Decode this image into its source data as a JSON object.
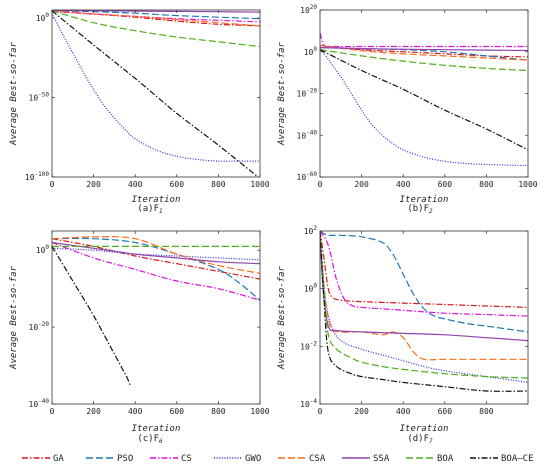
{
  "legend": [
    "GA",
    "PSO",
    "CS",
    "GWO",
    "CSA",
    "SSA",
    "BOA",
    "BOA—CE"
  ],
  "series_styles": [
    {
      "name": "GA",
      "color": "#d7191c",
      "dash": "6,2,1.5,2"
    },
    {
      "name": "PSO",
      "color": "#1f77b4",
      "dash": "7,3"
    },
    {
      "name": "CS",
      "color": "#e00ee0",
      "dash": "6,2,1.5,2"
    },
    {
      "name": "GWO",
      "color": "#2a2ad4",
      "dash": "1,1.6"
    },
    {
      "name": "CSA",
      "color": "#ff6a1a",
      "dash": "7,3"
    },
    {
      "name": "SSA",
      "color": "#8e44ad",
      "dash": ""
    },
    {
      "name": "BOA",
      "color": "#4caf1a",
      "dash": "7,3"
    },
    {
      "name": "BOA—CE",
      "color": "#111111",
      "dash": "6,2,1.5,2"
    }
  ],
  "chart_data": [
    {
      "type": "line",
      "caption_main": "(a)F",
      "caption_sub": "1",
      "xlabel": "Iteration",
      "ylabel": "Average Best-so-far",
      "y_scale": "log",
      "xlim": [
        0,
        1000
      ],
      "ylim_exp": [
        -100,
        5
      ],
      "x_ticks": [
        "0",
        "200",
        "400",
        "600",
        "800",
        "1000"
      ],
      "y_ticks": [
        {
          "exp": 0,
          "label": "10^0"
        },
        {
          "exp": -50,
          "label": "10^-50"
        },
        {
          "exp": -100,
          "label": "10^-100"
        }
      ],
      "series": [
        {
          "name": "GA",
          "x": [
            0,
            200,
            400,
            600,
            800,
            1000
          ],
          "log10_y": [
            4.5,
            2.5,
            0.5,
            -2,
            -4,
            -5
          ]
        },
        {
          "name": "PSO",
          "x": [
            0,
            200,
            400,
            600,
            800,
            1000
          ],
          "log10_y": [
            4.5,
            4,
            3,
            1.5,
            0.5,
            -0.5
          ]
        },
        {
          "name": "CS",
          "x": [
            0,
            200,
            400,
            600,
            800,
            1000
          ],
          "log10_y": [
            4,
            2.5,
            1,
            -0.5,
            -1.5,
            -2.5
          ]
        },
        {
          "name": "GWO",
          "x": [
            0,
            50,
            100,
            150,
            200,
            250,
            300,
            350,
            400,
            500,
            600,
            700,
            800,
            900,
            1000
          ],
          "log10_y": [
            3,
            -10,
            -22,
            -34,
            -45,
            -55,
            -63,
            -70,
            -76,
            -83,
            -87,
            -89,
            -90,
            -90,
            -90
          ]
        },
        {
          "name": "CSA",
          "x": [
            0,
            200,
            400,
            600,
            800,
            1000
          ],
          "log10_y": [
            4.5,
            2.5,
            1,
            -1,
            -3,
            -5
          ]
        },
        {
          "name": "SSA",
          "x": [
            0,
            200,
            400,
            600,
            800,
            1000
          ],
          "log10_y": [
            4.8,
            4.5,
            4.3,
            4.1,
            3.9,
            3.7
          ]
        },
        {
          "name": "BOA",
          "x": [
            0,
            200,
            400,
            600,
            800,
            1000
          ],
          "log10_y": [
            4.5,
            -3,
            -8,
            -12,
            -15,
            -18
          ]
        },
        {
          "name": "BOA—CE",
          "x": [
            0,
            200,
            400,
            600,
            800,
            1000
          ],
          "log10_y": [
            4.5,
            -17,
            -38,
            -60,
            -80,
            -101
          ]
        }
      ]
    },
    {
      "type": "line",
      "caption_main": "(b)F",
      "caption_sub": "2",
      "xlabel": "Iteration",
      "ylabel": "Average Best-so-far",
      "y_scale": "log",
      "xlim": [
        0,
        1000
      ],
      "ylim_exp": [
        -60,
        20
      ],
      "x_ticks": [
        "0",
        "200",
        "400",
        "600",
        "800",
        "1000"
      ],
      "y_ticks": [
        {
          "exp": 20,
          "label": "10^20"
        },
        {
          "exp": 0,
          "label": "10^0"
        },
        {
          "exp": -20,
          "label": "10^-20"
        },
        {
          "exp": -40,
          "label": "10^-40"
        },
        {
          "exp": -60,
          "label": "10^-60"
        }
      ],
      "series": [
        {
          "name": "GA",
          "x": [
            0,
            200,
            400,
            600,
            800,
            1000
          ],
          "log10_y": [
            3,
            1,
            0,
            -1,
            -2,
            -2.5
          ]
        },
        {
          "name": "PSO",
          "x": [
            0,
            200,
            400,
            600,
            800,
            1000
          ],
          "log10_y": [
            2,
            1.5,
            1,
            0,
            -2,
            -4
          ]
        },
        {
          "name": "CS",
          "x": [
            0,
            20,
            60,
            200,
            400,
            600,
            800,
            1000
          ],
          "log10_y": [
            9,
            3,
            2.5,
            2.5,
            2.5,
            2.5,
            2.5,
            2.5
          ]
        },
        {
          "name": "GWO",
          "x": [
            0,
            50,
            100,
            150,
            200,
            250,
            300,
            350,
            400,
            500,
            600,
            700,
            800,
            900,
            1000
          ],
          "log10_y": [
            2,
            -5,
            -12,
            -20,
            -28,
            -35,
            -40,
            -44,
            -47,
            -50.5,
            -52.5,
            -53.5,
            -54,
            -54.3,
            -54.5
          ]
        },
        {
          "name": "CSA",
          "x": [
            0,
            200,
            400,
            600,
            800,
            1000
          ],
          "log10_y": [
            3,
            0.5,
            -1,
            -2,
            -3,
            -4
          ]
        },
        {
          "name": "SSA",
          "x": [
            0,
            200,
            400,
            600,
            800,
            1000
          ],
          "log10_y": [
            2,
            1.5,
            1.2,
            1,
            0.8,
            0.6
          ]
        },
        {
          "name": "BOA",
          "x": [
            0,
            200,
            400,
            600,
            800,
            1000
          ],
          "log10_y": [
            1,
            -2,
            -4.5,
            -6.5,
            -8,
            -9
          ]
        },
        {
          "name": "BOA—CE",
          "x": [
            0,
            200,
            400,
            600,
            800,
            1000
          ],
          "log10_y": [
            1,
            -9,
            -18,
            -28,
            -37,
            -47
          ]
        }
      ]
    },
    {
      "type": "line",
      "caption_main": "(c)F",
      "caption_sub": "6",
      "xlabel": "Iteration",
      "ylabel": "Average Best-so-far",
      "y_scale": "log",
      "xlim": [
        0,
        1000
      ],
      "ylim_exp": [
        -40,
        5
      ],
      "x_ticks": [
        "0",
        "200",
        "400",
        "600",
        "800",
        "1000"
      ],
      "y_ticks": [
        {
          "exp": 0,
          "label": "10^0"
        },
        {
          "exp": -20,
          "label": "10^-20"
        },
        {
          "exp": -40,
          "label": "10^-40"
        }
      ],
      "series": [
        {
          "name": "GA",
          "x": [
            0,
            200,
            400,
            600,
            800,
            1000
          ],
          "log10_y": [
            3,
            1,
            -1.5,
            -3.5,
            -5.5,
            -7.5
          ]
        },
        {
          "name": "PSO",
          "x": [
            0,
            200,
            400,
            600,
            800,
            900,
            1000
          ],
          "log10_y": [
            3,
            3,
            2,
            -1,
            -5,
            -8.5,
            -13
          ]
        },
        {
          "name": "CS",
          "x": [
            0,
            200,
            400,
            600,
            800,
            1000
          ],
          "log10_y": [
            2,
            -2,
            -5,
            -8,
            -10,
            -13
          ]
        },
        {
          "name": "GWO",
          "x": [
            0,
            200,
            400,
            600,
            800,
            1000
          ],
          "log10_y": [
            0.5,
            0,
            -1,
            -1.5,
            -2,
            -2.5
          ]
        },
        {
          "name": "CSA",
          "x": [
            0,
            200,
            400,
            600,
            800,
            1000
          ],
          "log10_y": [
            3,
            3.5,
            3,
            -1,
            -4,
            -6
          ]
        },
        {
          "name": "SSA",
          "x": [
            0,
            200,
            400,
            600,
            800,
            1000
          ],
          "log10_y": [
            2,
            0.5,
            -1,
            -2,
            -3,
            -3.5
          ]
        },
        {
          "name": "BOA",
          "x": [
            0,
            100,
            200,
            400,
            600,
            800,
            1000
          ],
          "log10_y": [
            1,
            1,
            1,
            1,
            1,
            1,
            1
          ]
        },
        {
          "name": "BOA—CE",
          "x": [
            0,
            100,
            200,
            300,
            340,
            360,
            375
          ],
          "log10_y": [
            1,
            -8,
            -17,
            -27,
            -31,
            -33,
            -35
          ]
        }
      ]
    },
    {
      "type": "line",
      "caption_main": "(d)F",
      "caption_sub": "7",
      "xlabel": "Iteration",
      "ylabel": "Average Best-so-far",
      "y_scale": "log",
      "xlim": [
        0,
        1000
      ],
      "ylim_exp": [
        -4,
        2
      ],
      "x_ticks": [
        "0",
        "200",
        "400",
        "600",
        "800"
      ],
      "y_ticks": [
        {
          "exp": 2,
          "label": "10^2"
        },
        {
          "exp": 0,
          "label": "10^0"
        },
        {
          "exp": -2,
          "label": "10^-2"
        },
        {
          "exp": -4,
          "label": "10^-4"
        }
      ],
      "series": [
        {
          "name": "GA",
          "x": [
            0,
            20,
            40,
            60,
            100,
            200,
            400,
            600,
            800,
            1000
          ],
          "log10_y": [
            2,
            1,
            0,
            -0.3,
            -0.4,
            -0.45,
            -0.5,
            -0.55,
            -0.6,
            -0.65
          ]
        },
        {
          "name": "PSO",
          "x": [
            0,
            20,
            50,
            100,
            200,
            300,
            350,
            400,
            450,
            500,
            550,
            600,
            700,
            800,
            900,
            1000
          ],
          "log10_y": [
            2,
            1.9,
            1.85,
            1.85,
            1.8,
            1.6,
            1.2,
            0.5,
            -0.2,
            -0.7,
            -0.95,
            -1.05,
            -1.2,
            -1.3,
            -1.4,
            -1.5
          ]
        },
        {
          "name": "CS",
          "x": [
            0,
            40,
            80,
            120,
            160,
            200,
            400,
            600,
            800,
            1000
          ],
          "log10_y": [
            2,
            1.5,
            0.3,
            -0.4,
            -0.6,
            -0.65,
            -0.75,
            -0.85,
            -0.9,
            -0.95
          ]
        },
        {
          "name": "GWO",
          "x": [
            0,
            20,
            50,
            100,
            200,
            300,
            400,
            500,
            600,
            800,
            1000
          ],
          "log10_y": [
            2,
            0,
            -1.2,
            -1.8,
            -2.1,
            -2.3,
            -2.5,
            -2.7,
            -2.85,
            -3.05,
            -3.25
          ]
        },
        {
          "name": "CSA",
          "x": [
            0,
            20,
            50,
            100,
            200,
            300,
            350,
            400,
            450,
            500,
            600,
            800,
            1000
          ],
          "log10_y": [
            2,
            0,
            -1.3,
            -1.5,
            -1.5,
            -1.6,
            -1.5,
            -1.7,
            -2.2,
            -2.45,
            -2.45,
            -2.45,
            -2.45
          ]
        },
        {
          "name": "SSA",
          "x": [
            0,
            15,
            40,
            80,
            200,
            400,
            600,
            800,
            1000
          ],
          "log10_y": [
            2,
            0,
            -1.3,
            -1.45,
            -1.5,
            -1.55,
            -1.6,
            -1.7,
            -1.8
          ]
        },
        {
          "name": "BOA",
          "x": [
            0,
            20,
            40,
            80,
            150,
            200,
            300,
            400,
            600,
            800,
            1000
          ],
          "log10_y": [
            2,
            0,
            -1.6,
            -2.1,
            -2.4,
            -2.55,
            -2.7,
            -2.8,
            -2.95,
            -3.05,
            -3.1
          ]
        },
        {
          "name": "BOA—CE",
          "x": [
            0,
            20,
            40,
            80,
            150,
            200,
            300,
            400,
            600,
            800,
            1000
          ],
          "log10_y": [
            2,
            -0.5,
            -2.2,
            -2.7,
            -2.95,
            -3.05,
            -3.15,
            -3.25,
            -3.4,
            -3.55,
            -3.55
          ]
        }
      ]
    }
  ]
}
